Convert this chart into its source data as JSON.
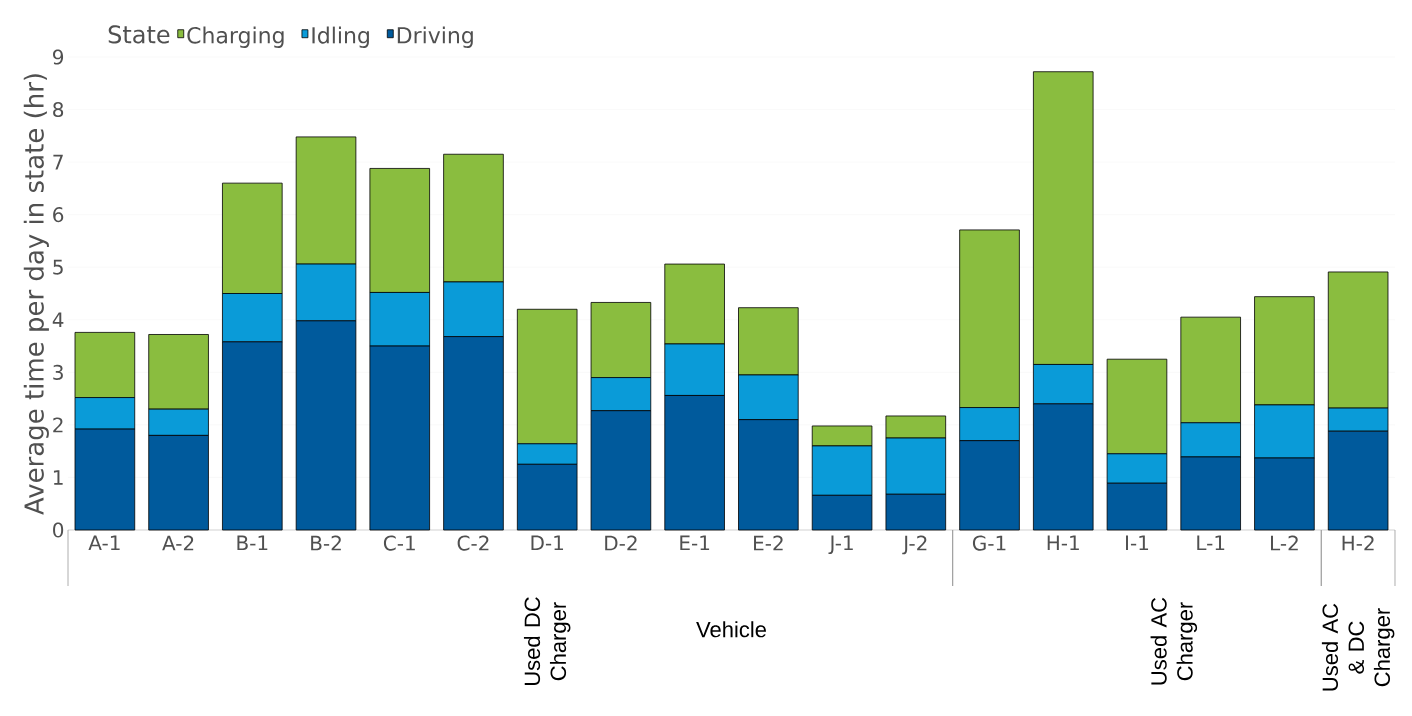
{
  "chart_data": {
    "type": "bar",
    "stacked": true,
    "xlabel": "Vehicle",
    "ylabel": "Average time per day in state (hr)",
    "legend_title": "State",
    "legend": "top left",
    "grid": "y",
    "categories": [
      "A-1",
      "A-2",
      "B-1",
      "B-2",
      "C-1",
      "C-2",
      "D-1",
      "D-2",
      "E-1",
      "E-2",
      "J-1",
      "J-2",
      "G-1",
      "H-1",
      "I-1",
      "L-1",
      "L-2",
      "H-2"
    ],
    "series": [
      {
        "name": "Driving",
        "color": "#005a9c",
        "values": [
          1.92,
          1.8,
          3.58,
          3.98,
          3.5,
          3.68,
          1.25,
          2.27,
          2.56,
          2.1,
          0.66,
          0.68,
          1.7,
          2.4,
          0.89,
          1.39,
          1.37,
          1.88
        ]
      },
      {
        "name": "Idling",
        "color": "#0a9bd8",
        "values": [
          0.6,
          0.5,
          0.92,
          1.08,
          1.02,
          1.04,
          0.39,
          0.63,
          0.98,
          0.85,
          0.94,
          1.07,
          0.63,
          0.75,
          0.56,
          0.65,
          1.01,
          0.44
        ]
      },
      {
        "name": "Charging",
        "color": "#8abd3f",
        "values": [
          1.24,
          1.42,
          2.1,
          2.42,
          2.36,
          2.43,
          2.56,
          1.43,
          1.52,
          1.28,
          0.38,
          0.42,
          3.38,
          5.57,
          1.8,
          2.01,
          2.06,
          2.59
        ]
      }
    ],
    "ylim": [
      0,
      9
    ],
    "yticks": [
      0,
      1,
      2,
      3,
      4,
      5,
      6,
      7,
      8,
      9
    ],
    "annotations": [
      "Used DC Charger",
      "Used AC Charger",
      "Used AC & DC Charger"
    ]
  }
}
